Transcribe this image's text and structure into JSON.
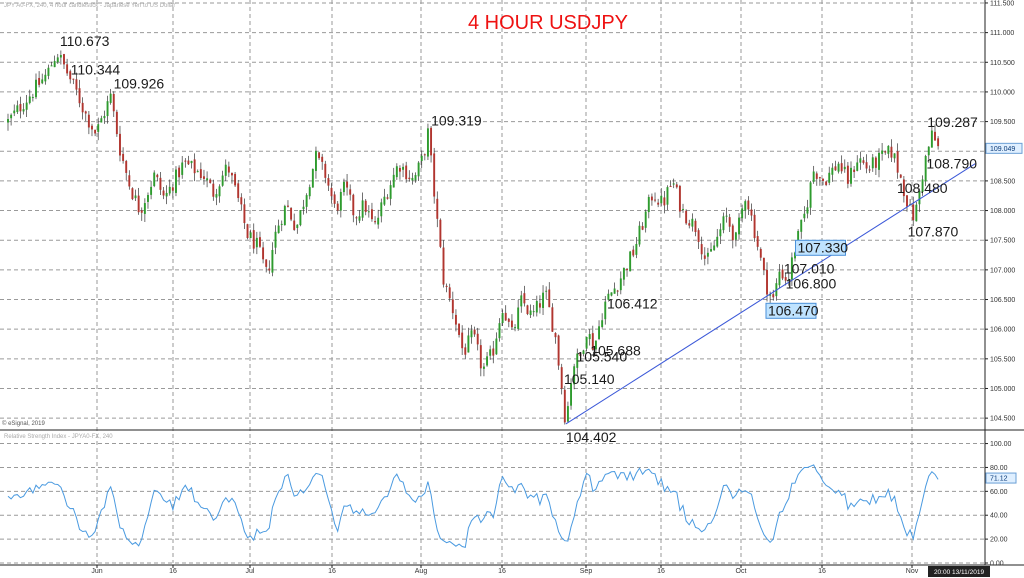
{
  "chart_data": {
    "type": "candlestick",
    "title": "4 HOUR USDJPY",
    "header_text": "JPY A0-FX, 240, 4 hour candlestick - Japanese Yen to US Dollar",
    "watermark": "© eSignal, 2019",
    "price_axis": {
      "ticks": [
        "111.500",
        "111.000",
        "110.500",
        "110.000",
        "109.500",
        "109.000",
        "108.500",
        "108.000",
        "107.500",
        "107.000",
        "106.500",
        "106.000",
        "105.500",
        "105.000",
        "104.500"
      ],
      "range": [
        104.3,
        111.55
      ],
      "current_price_label": "109.049",
      "current_price": 109.049
    },
    "x_axis": {
      "labels": [
        "Jun",
        "16",
        "Jul",
        "16",
        "Aug",
        "16",
        "Sep",
        "16",
        "Oct",
        "16",
        "Nov"
      ],
      "time_tag": "20:00 13/11/2019"
    },
    "price_path": [
      [
        109.5,
        0
      ],
      [
        109.9,
        2
      ],
      [
        110.3,
        4
      ],
      [
        110.673,
        5
      ],
      [
        110.344,
        6
      ],
      [
        110.0,
        7
      ],
      [
        109.6,
        8
      ],
      [
        109.3,
        9
      ],
      [
        109.926,
        10.5
      ],
      [
        109.0,
        11.5
      ],
      [
        108.4,
        12.5
      ],
      [
        108.0,
        13.5
      ],
      [
        108.6,
        15
      ],
      [
        108.2,
        16
      ],
      [
        108.8,
        18
      ],
      [
        108.6,
        20
      ],
      [
        108.3,
        21
      ],
      [
        108.75,
        22.5
      ],
      [
        108.2,
        23.5
      ],
      [
        107.6,
        24.5
      ],
      [
        107.4,
        25.5
      ],
      [
        106.9,
        26.5
      ],
      [
        107.7,
        27.5
      ],
      [
        108.1,
        28.5
      ],
      [
        107.7,
        29.5
      ],
      [
        108.3,
        30.5
      ],
      [
        108.9,
        31.5
      ],
      [
        108.6,
        32.5
      ],
      [
        108.0,
        33.5
      ],
      [
        108.4,
        34.5
      ],
      [
        107.9,
        35.5
      ],
      [
        108.1,
        36.5
      ],
      [
        107.7,
        37.5
      ],
      [
        108.2,
        38.5
      ],
      [
        108.8,
        40
      ],
      [
        108.5,
        41.5
      ],
      [
        108.9,
        42.5
      ],
      [
        109.319,
        43
      ],
      [
        108.0,
        43.8
      ],
      [
        106.8,
        44.6
      ],
      [
        106.3,
        45.6
      ],
      [
        105.6,
        46.6
      ],
      [
        105.9,
        47.6
      ],
      [
        105.3,
        48.6
      ],
      [
        105.6,
        49.6
      ],
      [
        106.4,
        50.6
      ],
      [
        105.9,
        51.6
      ],
      [
        106.5,
        52.6
      ],
      [
        106.2,
        53.6
      ],
      [
        106.6,
        55
      ],
      [
        105.9,
        56
      ],
      [
        105.14,
        56.6
      ],
      [
        104.402,
        57.1
      ],
      [
        105.4,
        57.8
      ],
      [
        105.54,
        58.6
      ],
      [
        106.0,
        59.2
      ],
      [
        105.688,
        60
      ],
      [
        106.412,
        61
      ],
      [
        106.8,
        62.5
      ],
      [
        107.3,
        64
      ],
      [
        107.8,
        65
      ],
      [
        108.3,
        66
      ],
      [
        108.1,
        67
      ],
      [
        108.5,
        68
      ],
      [
        108.0,
        69
      ],
      [
        107.7,
        70.5
      ],
      [
        107.1,
        71.5
      ],
      [
        107.5,
        72.5
      ],
      [
        107.9,
        73.5
      ],
      [
        107.5,
        74.5
      ],
      [
        108.3,
        75.5
      ],
      [
        107.6,
        76.5
      ],
      [
        106.8,
        77.5
      ],
      [
        106.47,
        78.3
      ],
      [
        107.01,
        79
      ],
      [
        106.8,
        79.8
      ],
      [
        107.33,
        80.5
      ],
      [
        107.9,
        81.5
      ],
      [
        108.7,
        82.5
      ],
      [
        108.5,
        83.5
      ],
      [
        108.8,
        85
      ],
      [
        108.5,
        86
      ],
      [
        108.9,
        87
      ],
      [
        108.7,
        88
      ],
      [
        108.9,
        89.5
      ],
      [
        109.0,
        90.5
      ],
      [
        108.48,
        91.5
      ],
      [
        108.0,
        92.3
      ],
      [
        107.87,
        92.8
      ],
      [
        108.79,
        93.8
      ],
      [
        109.287,
        94.6
      ],
      [
        109.05,
        95.2
      ]
    ],
    "trendline": {
      "from": [
        104.402,
        57.1
      ],
      "to": [
        108.79,
        99.0
      ]
    },
    "annotations": [
      {
        "text": "110.673",
        "x": 5,
        "y": 110.673,
        "dx": 3,
        "dy": -6,
        "boxed": false
      },
      {
        "text": "110.344",
        "x": 6,
        "y": 110.344,
        "dx": 4,
        "dy": 3,
        "boxed": false
      },
      {
        "text": "109.926",
        "x": 10.5,
        "y": 109.926,
        "dx": 3,
        "dy": -8,
        "boxed": false
      },
      {
        "text": "109.319",
        "x": 43,
        "y": 109.319,
        "dx": 3,
        "dy": -7,
        "boxed": false
      },
      {
        "text": "104.402",
        "x": 57.1,
        "y": 104.402,
        "dx": 0,
        "dy": 18,
        "boxed": false
      },
      {
        "text": "105.140",
        "x": 56.6,
        "y": 105.14,
        "dx": 3,
        "dy": 4,
        "boxed": false
      },
      {
        "text": "105.540",
        "x": 58.6,
        "y": 105.54,
        "dx": -4,
        "dy": 5,
        "boxed": false
      },
      {
        "text": "105.688",
        "x": 60,
        "y": 105.688,
        "dx": -4,
        "dy": 8,
        "boxed": false
      },
      {
        "text": "106.412",
        "x": 61,
        "y": 106.412,
        "dx": 3,
        "dy": 4,
        "boxed": false
      },
      {
        "text": "107.330",
        "x": 80.5,
        "y": 107.33,
        "dx": 3,
        "dy": 2,
        "boxed": true
      },
      {
        "text": "107.010",
        "x": 79,
        "y": 107.01,
        "dx": 4,
        "dy": 4,
        "boxed": false
      },
      {
        "text": "106.800",
        "x": 79.8,
        "y": 106.8,
        "dx": -2,
        "dy": 7,
        "boxed": false
      },
      {
        "text": "106.470",
        "x": 78.3,
        "y": 106.47,
        "dx": -5,
        "dy": 14,
        "boxed": true
      },
      {
        "text": "109.287",
        "x": 94.6,
        "y": 109.287,
        "dx": -5,
        "dy": -7,
        "boxed": false
      },
      {
        "text": "108.790",
        "x": 93.8,
        "y": 108.79,
        "dx": 2,
        "dy": 5,
        "boxed": false
      },
      {
        "text": "108.480",
        "x": 91.5,
        "y": 108.48,
        "dx": -5,
        "dy": 11,
        "boxed": false
      },
      {
        "text": "107.870",
        "x": 92.8,
        "y": 107.87,
        "dx": -7,
        "dy": 18,
        "boxed": false
      }
    ],
    "rsi": {
      "header": "Relative Strength Index - JPYA0-FX, 240",
      "ticks": [
        "100.00",
        "80.00",
        "60.00",
        "40.00",
        "20.00",
        "0.00"
      ],
      "range": [
        0,
        108
      ],
      "current_label": "71.12",
      "current": 71.12
    },
    "colors": {
      "up": "#2e9b2e",
      "down": "#b1352f",
      "wick": "#333333",
      "trendline": "#3b58d8",
      "rsi": "#4a9ae0",
      "title": "#ee1111"
    }
  }
}
